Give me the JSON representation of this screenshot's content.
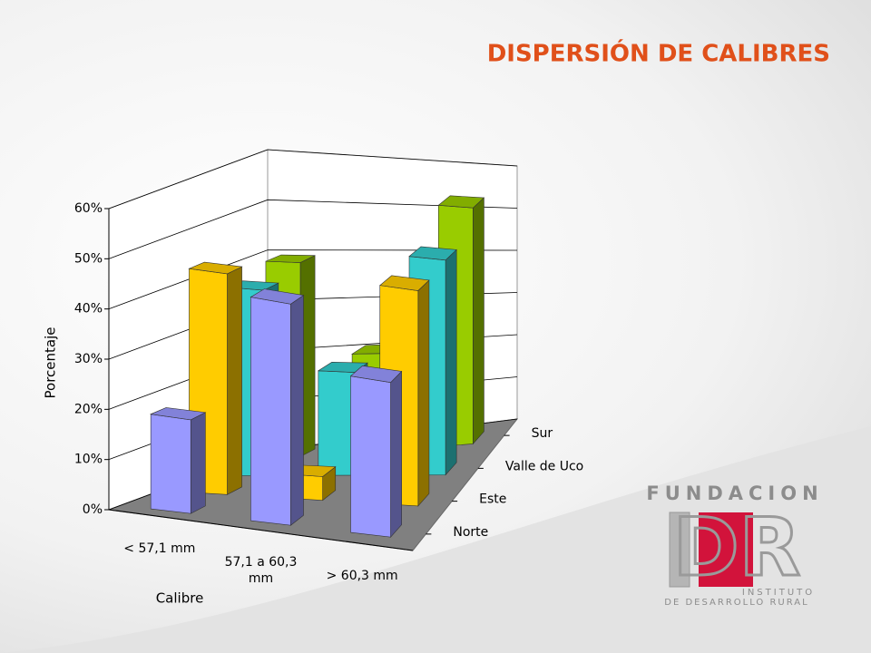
{
  "chart_data": {
    "type": "bar3d",
    "title": "DISPERSIÓN DE CALIBRES",
    "y_label": "Porcentaje",
    "x_label": "Calibre",
    "categories": [
      "< 57,1 mm",
      "57,1 a 60,3 mm",
      "> 60,3 mm"
    ],
    "series": [
      {
        "name": "Norte",
        "color": "#9999ff",
        "values": [
          19,
          46,
          33
        ]
      },
      {
        "name": "Este",
        "color": "#ffcc00",
        "values": [
          45,
          5,
          47
        ]
      },
      {
        "name": "Valle de Uco",
        "color": "#33cccc",
        "values": [
          38,
          22,
          48
        ]
      },
      {
        "name": "Sur",
        "color": "#99cc00",
        "values": [
          40,
          21,
          54
        ]
      }
    ],
    "ylim": [
      0,
      60
    ],
    "yticks": [
      {
        "value": 0,
        "label": "0%"
      },
      {
        "value": 10,
        "label": "10%"
      },
      {
        "value": 20,
        "label": "20%"
      },
      {
        "value": 30,
        "label": "30%"
      },
      {
        "value": 40,
        "label": "40%"
      },
      {
        "value": 50,
        "label": "50%"
      },
      {
        "value": 60,
        "label": "60%"
      }
    ],
    "grid": true
  },
  "logo": {
    "top": "FUNDACION",
    "mark_left": "i",
    "mark_right": "DR",
    "line1": "INSTITUTO",
    "line2": "DE DESARROLLO RURAL"
  }
}
